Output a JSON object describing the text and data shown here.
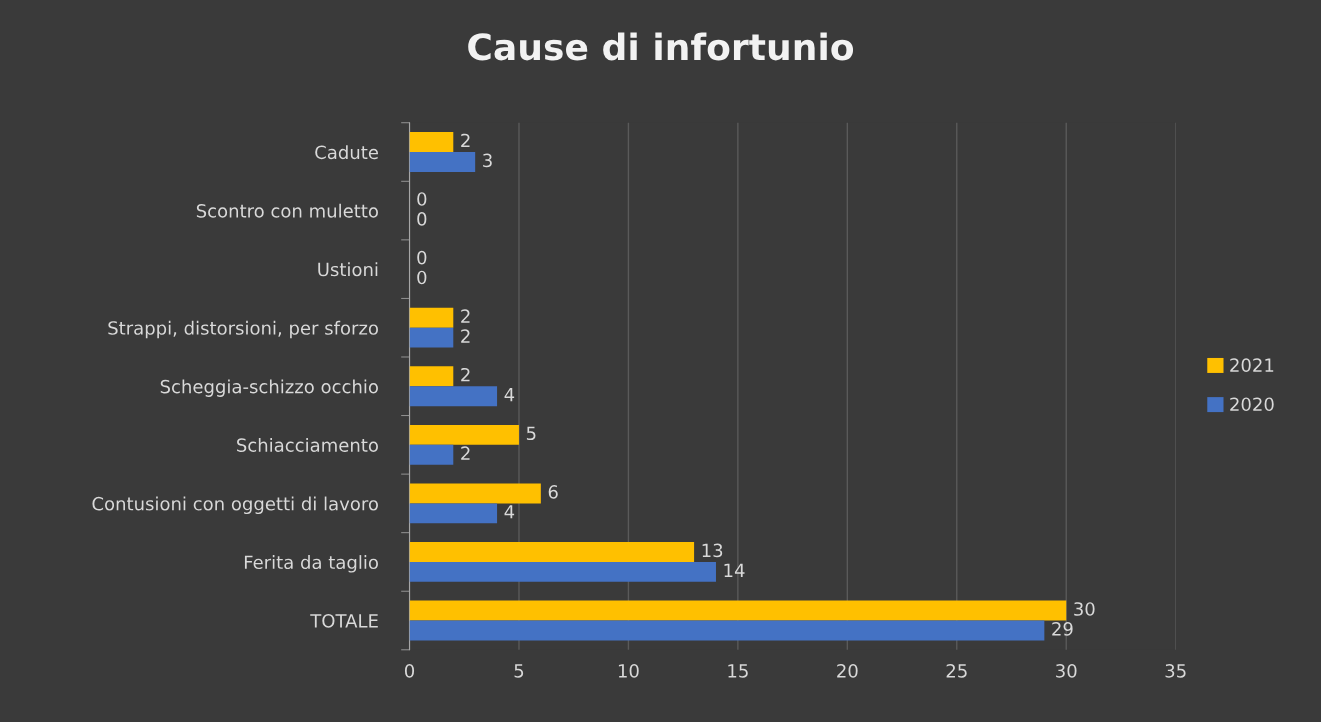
{
  "chart_data": {
    "type": "bar",
    "orientation": "horizontal",
    "title": "Cause di infortunio",
    "categories": [
      "Cadute",
      "Scontro con muletto",
      "Ustioni",
      "Strappi, distorsioni, per sforzo",
      "Scheggia-schizzo occhio",
      "Schiacciamento",
      "Contusioni con oggetti di lavoro",
      "Ferita da taglio",
      "TOTALE"
    ],
    "series": [
      {
        "name": "2021",
        "color": "#ffc000",
        "values": [
          2,
          0,
          0,
          2,
          2,
          5,
          6,
          13,
          30
        ]
      },
      {
        "name": "2020",
        "color": "#4472c4",
        "values": [
          3,
          0,
          0,
          2,
          4,
          2,
          4,
          14,
          29
        ]
      }
    ],
    "xlim": [
      0,
      35
    ],
    "xticks": [
      0,
      5,
      10,
      15,
      20,
      25,
      30,
      35
    ],
    "grid": "x",
    "legend": "right",
    "data_labels": true
  }
}
